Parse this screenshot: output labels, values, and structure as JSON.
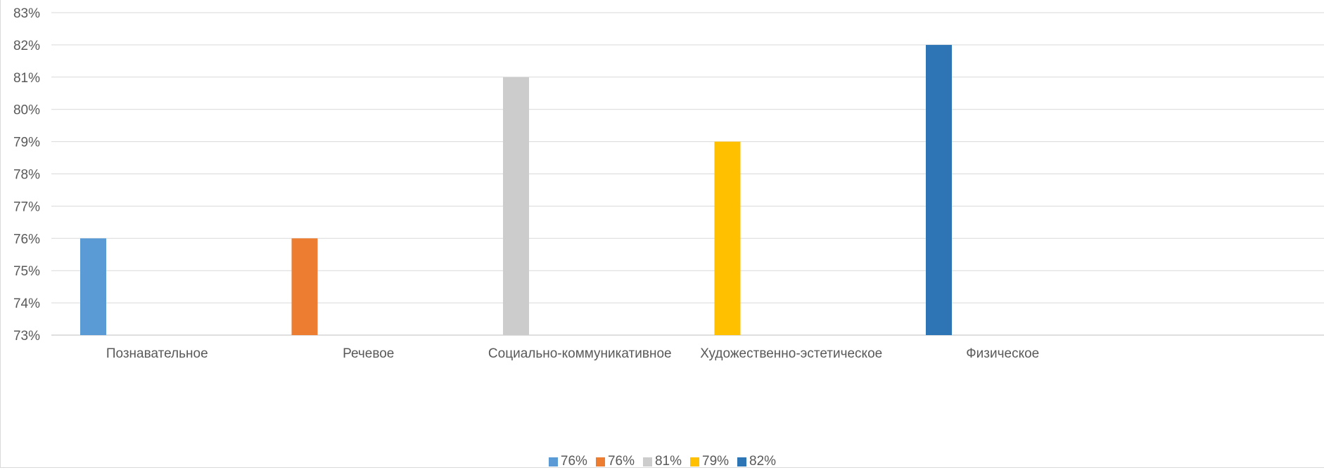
{
  "chart_data": {
    "type": "bar",
    "categories": [
      "Познавательное",
      "Речевое",
      "Социально-коммуникативное",
      "Художественно-эстетическое",
      "Физическое"
    ],
    "series": [
      {
        "name": "76%",
        "color": "#5b9bd5",
        "values": [
          76,
          null,
          null,
          null,
          null
        ]
      },
      {
        "name": "76%",
        "color": "#ed7d31",
        "values": [
          null,
          76,
          null,
          null,
          null
        ]
      },
      {
        "name": "81%",
        "color": "#cccccc",
        "values": [
          null,
          null,
          81,
          null,
          null
        ]
      },
      {
        "name": "79%",
        "color": "#ffc000",
        "values": [
          null,
          null,
          null,
          79,
          null
        ]
      },
      {
        "name": "82%",
        "color": "#2e75b6",
        "values": [
          null,
          null,
          null,
          null,
          82
        ]
      }
    ],
    "ylim": [
      73,
      83
    ],
    "ytick_step": 1,
    "ytick_format": "%",
    "grid": true,
    "legend_position": "bottom"
  }
}
